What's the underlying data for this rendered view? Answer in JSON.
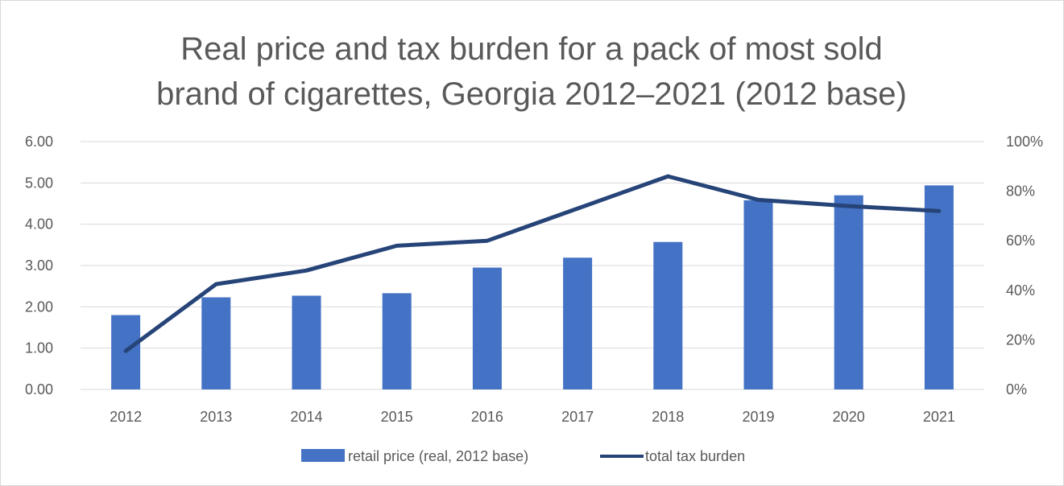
{
  "chart_data": {
    "type": "bar",
    "title_lines": [
      "Real price and tax burden for a pack of most sold",
      "brand of cigarettes, Georgia 2012–2021 (2012 base)"
    ],
    "categories": [
      "2012",
      "2013",
      "2014",
      "2015",
      "2016",
      "2017",
      "2018",
      "2019",
      "2020",
      "2021"
    ],
    "y_left": {
      "min": 0,
      "max": 6,
      "step": 1,
      "tick_labels": [
        "0.00",
        "1.00",
        "2.00",
        "3.00",
        "4.00",
        "5.00",
        "6.00"
      ]
    },
    "y_right": {
      "min": 0,
      "max": 1,
      "step": 0.2,
      "tick_labels": [
        "0%",
        "20%",
        "40%",
        "60%",
        "80%",
        "100%"
      ]
    },
    "grid": true,
    "legend_position": "bottom",
    "series": [
      {
        "name": "retail price (real, 2012 base)",
        "type": "bar",
        "axis": "left",
        "color": "#4472c4",
        "values": [
          1.8,
          2.23,
          2.27,
          2.33,
          2.95,
          3.19,
          3.57,
          4.58,
          4.7,
          4.94
        ]
      },
      {
        "name": "total tax burden",
        "type": "line",
        "axis": "right",
        "color": "#264478",
        "values": [
          0.155,
          0.425,
          0.48,
          0.58,
          0.6,
          0.73,
          0.86,
          0.765,
          0.74,
          0.72
        ]
      }
    ]
  }
}
